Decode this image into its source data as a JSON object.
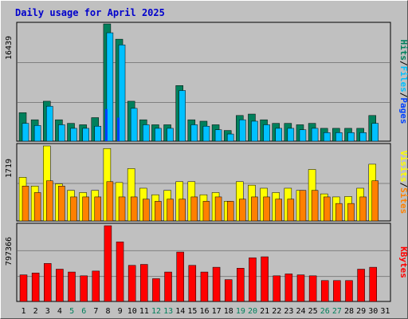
{
  "chart_data": [
    {
      "type": "bar",
      "title": "Daily usage for April 2025",
      "y_tick_label": "16439",
      "categories": [
        "1",
        "2",
        "3",
        "4",
        "5",
        "6",
        "7",
        "8",
        "9",
        "10",
        "11",
        "12",
        "13",
        "14",
        "15",
        "16",
        "17",
        "18",
        "19",
        "20",
        "21",
        "22",
        "23",
        "24",
        "25",
        "26",
        "27",
        "28",
        "29",
        "30",
        "31"
      ],
      "weekend_days": [
        "5",
        "6",
        "12",
        "13",
        "19",
        "20",
        "26",
        "27"
      ],
      "series": [
        {
          "name": "Hits",
          "color": "#00805c",
          "values": [
            4000,
            3000,
            5600,
            3000,
            2500,
            2300,
            3300,
            16439,
            14300,
            5600,
            3000,
            2300,
            2300,
            7800,
            3000,
            2800,
            2300,
            1500,
            3600,
            3800,
            3000,
            2500,
            2500,
            2300,
            2500,
            1800,
            1800,
            1800,
            1800,
            3600,
            0
          ]
        },
        {
          "name": "Files",
          "color": "#00c0ff",
          "values": [
            2500,
            2200,
            4900,
            2300,
            1800,
            1800,
            2100,
            15200,
            13500,
            4600,
            2300,
            1800,
            1800,
            7100,
            2300,
            2100,
            1600,
            1000,
            3000,
            2800,
            2300,
            1800,
            1800,
            1600,
            1800,
            1200,
            1200,
            1200,
            1200,
            2500,
            0
          ]
        },
        {
          "name": "Pages",
          "color": "#0040ff",
          "values": [
            0,
            0,
            0,
            0,
            0,
            0,
            0,
            4500,
            3300,
            0,
            0,
            0,
            0,
            0,
            0,
            0,
            0,
            0,
            0,
            0,
            0,
            0,
            0,
            0,
            0,
            0,
            0,
            0,
            0,
            0,
            0
          ]
        }
      ],
      "legend": [
        "Pages",
        "Files",
        "Hits"
      ],
      "legend_separator": "/"
    },
    {
      "type": "bar",
      "y_tick_label": "1719",
      "categories": [
        "1",
        "2",
        "3",
        "4",
        "5",
        "6",
        "7",
        "8",
        "9",
        "10",
        "11",
        "12",
        "13",
        "14",
        "15",
        "16",
        "17",
        "18",
        "19",
        "20",
        "21",
        "22",
        "23",
        "24",
        "25",
        "26",
        "27",
        "28",
        "29",
        "30",
        "31"
      ],
      "series": [
        {
          "name": "Visits",
          "color": "#ffff00",
          "values": [
            1000,
            800,
            1719,
            850,
            700,
            650,
            700,
            1660,
            880,
            1200,
            750,
            600,
            700,
            900,
            900,
            600,
            650,
            450,
            900,
            820,
            750,
            650,
            750,
            700,
            1180,
            620,
            550,
            560,
            750,
            1300,
            0
          ]
        },
        {
          "name": "Sites",
          "color": "#ff8000",
          "values": [
            800,
            650,
            920,
            800,
            550,
            550,
            550,
            900,
            550,
            550,
            500,
            450,
            500,
            500,
            550,
            450,
            550,
            450,
            500,
            550,
            550,
            500,
            500,
            700,
            700,
            550,
            400,
            400,
            550,
            920,
            0
          ]
        }
      ],
      "legend": [
        "Sites",
        "Visits"
      ],
      "legend_separator": "/"
    },
    {
      "type": "bar",
      "y_tick_label": "797366",
      "categories": [
        "1",
        "2",
        "3",
        "4",
        "5",
        "6",
        "7",
        "8",
        "9",
        "10",
        "11",
        "12",
        "13",
        "14",
        "15",
        "16",
        "17",
        "18",
        "19",
        "20",
        "21",
        "22",
        "23",
        "24",
        "25",
        "26",
        "27",
        "28",
        "29",
        "30",
        "31"
      ],
      "series": [
        {
          "name": "KBytes",
          "color": "#ff0000",
          "values": [
            280000,
            300000,
            400000,
            340000,
            310000,
            270000,
            320000,
            797366,
            627000,
            380000,
            390000,
            240000,
            310000,
            520000,
            380000,
            310000,
            360000,
            230000,
            350000,
            460000,
            470000,
            270000,
            290000,
            280000,
            270000,
            220000,
            220000,
            220000,
            340000,
            360000,
            0
          ]
        }
      ],
      "legend": [
        "KBytes"
      ]
    }
  ]
}
